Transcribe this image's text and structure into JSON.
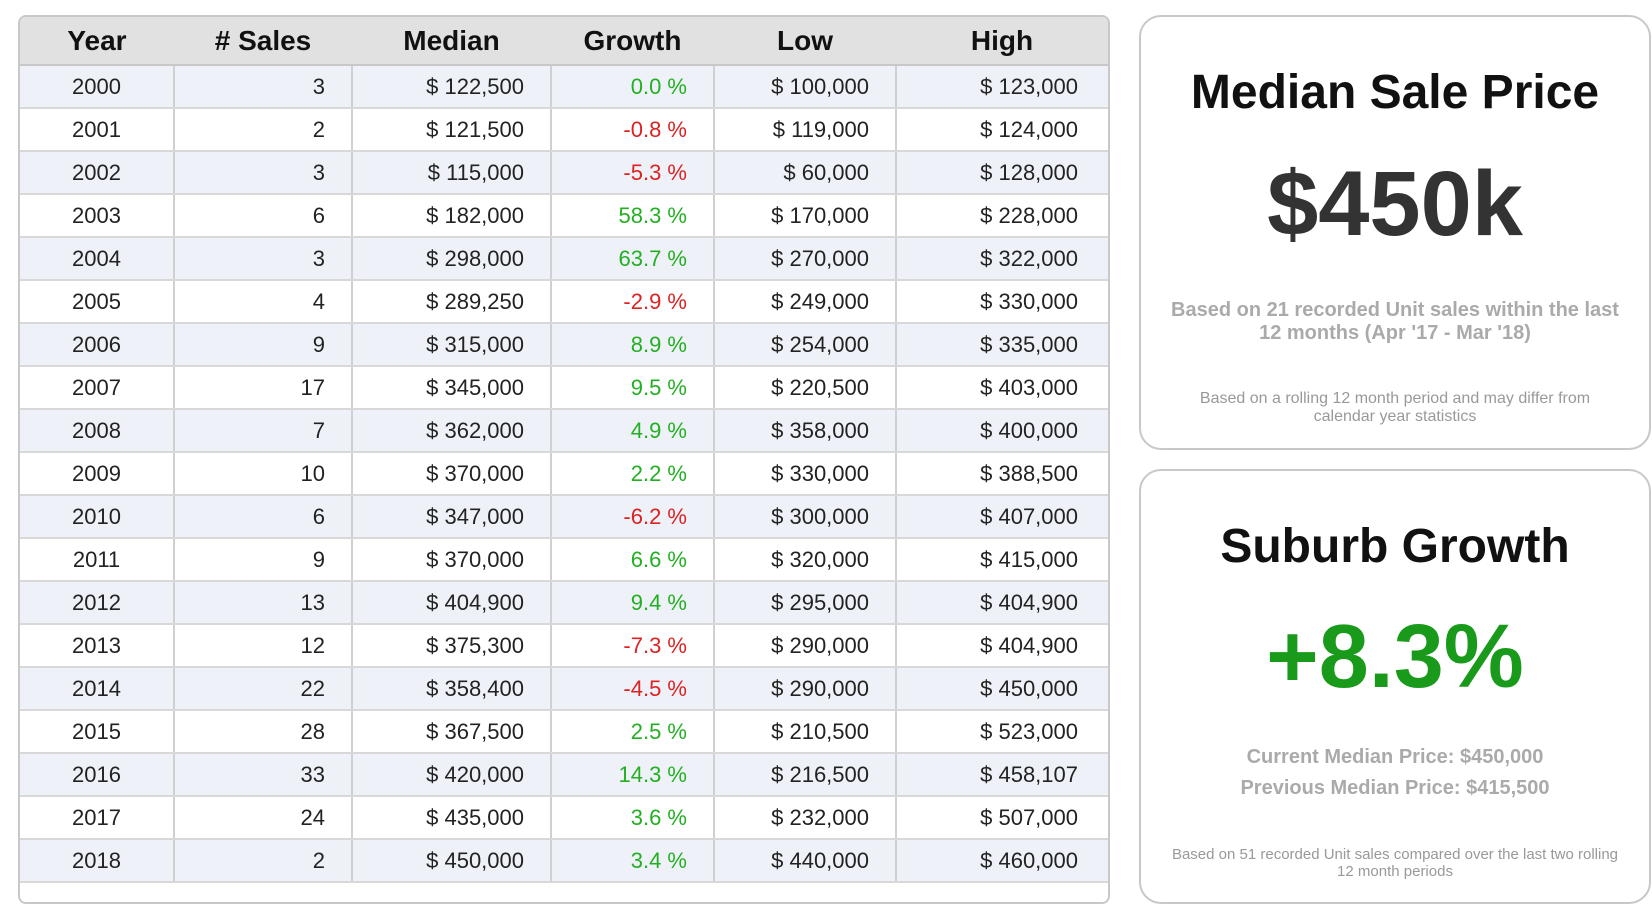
{
  "table": {
    "columns": [
      "Year",
      "# Sales",
      "Median",
      "Growth",
      "Low",
      "High"
    ],
    "rows": [
      [
        "2000",
        "3",
        "$ 122,500",
        "0.0 %",
        "$ 100,000",
        "$ 123,000"
      ],
      [
        "2001",
        "2",
        "$ 121,500",
        "-0.8 %",
        "$ 119,000",
        "$ 124,000"
      ],
      [
        "2002",
        "3",
        "$ 115,000",
        "-5.3 %",
        "$ 60,000",
        "$ 128,000"
      ],
      [
        "2003",
        "6",
        "$ 182,000",
        "58.3 %",
        "$ 170,000",
        "$ 228,000"
      ],
      [
        "2004",
        "3",
        "$ 298,000",
        "63.7 %",
        "$ 270,000",
        "$ 322,000"
      ],
      [
        "2005",
        "4",
        "$ 289,250",
        "-2.9 %",
        "$ 249,000",
        "$ 330,000"
      ],
      [
        "2006",
        "9",
        "$ 315,000",
        "8.9 %",
        "$ 254,000",
        "$ 335,000"
      ],
      [
        "2007",
        "17",
        "$ 345,000",
        "9.5 %",
        "$ 220,500",
        "$ 403,000"
      ],
      [
        "2008",
        "7",
        "$ 362,000",
        "4.9 %",
        "$ 358,000",
        "$ 400,000"
      ],
      [
        "2009",
        "10",
        "$ 370,000",
        "2.2 %",
        "$ 330,000",
        "$ 388,500"
      ],
      [
        "2010",
        "6",
        "$ 347,000",
        "-6.2 %",
        "$ 300,000",
        "$ 407,000"
      ],
      [
        "2011",
        "9",
        "$ 370,000",
        "6.6 %",
        "$ 320,000",
        "$ 415,000"
      ],
      [
        "2012",
        "13",
        "$ 404,900",
        "9.4 %",
        "$ 295,000",
        "$ 404,900"
      ],
      [
        "2013",
        "12",
        "$ 375,300",
        "-7.3 %",
        "$ 290,000",
        "$ 404,900"
      ],
      [
        "2014",
        "22",
        "$ 358,400",
        "-4.5 %",
        "$ 290,000",
        "$ 450,000"
      ],
      [
        "2015",
        "28",
        "$ 367,500",
        "2.5 %",
        "$ 210,500",
        "$ 523,000"
      ],
      [
        "2016",
        "33",
        "$ 420,000",
        "14.3 %",
        "$ 216,500",
        "$ 458,107"
      ],
      [
        "2017",
        "24",
        "$ 435,000",
        "3.6 %",
        "$ 232,000",
        "$ 507,000"
      ],
      [
        "2018",
        "2",
        "$ 450,000",
        "3.4 %",
        "$ 440,000",
        "$ 460,000"
      ]
    ]
  },
  "median_card": {
    "title": "Median Sale Price",
    "value": "$450k",
    "note": "Based on 21 recorded Unit sales within the last 12 months (Apr '17 - Mar '18)",
    "footnote": "Based on a rolling 12 month period and may differ from calendar year statistics"
  },
  "growth_card": {
    "title": "Suburb Growth",
    "value": "+8.3%",
    "current": "Current Median Price: $450,000",
    "previous": "Previous Median Price: $415,500",
    "footnote": "Based on 51 recorded Unit sales compared over the last two rolling 12 month periods"
  }
}
